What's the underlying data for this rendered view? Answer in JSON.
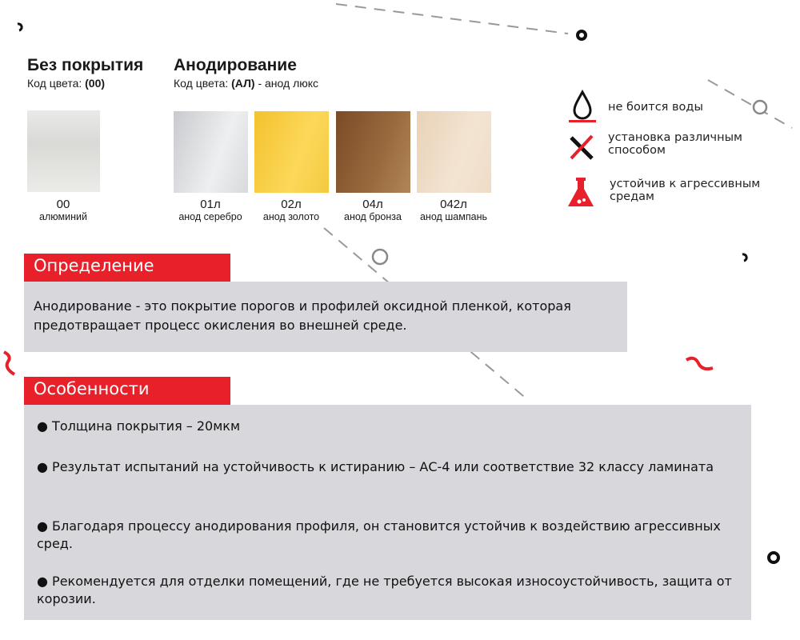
{
  "uncoated": {
    "title": "Без покрытия",
    "code_label": "Код цвета:",
    "code": "(00)",
    "swatch": {
      "code": "00",
      "name": "алюминий"
    }
  },
  "anodizing": {
    "title": "Анодирование",
    "code_label": "Код цвета:",
    "code": "(АЛ)",
    "code_suffix": "- анод люкс",
    "swatches": [
      {
        "code": "01л",
        "name": "анод серебро",
        "color": "#dcdde0"
      },
      {
        "code": "02л",
        "name": "анод золото",
        "color": "#f5c73f"
      },
      {
        "code": "04л",
        "name": "анод бронза",
        "color": "#94643a"
      },
      {
        "code": "042л",
        "name": "анод шампань",
        "color": "#f0dcc4"
      }
    ]
  },
  "features": [
    {
      "icon": "water-drop-icon",
      "label": "не боится воды"
    },
    {
      "icon": "tools-icon",
      "label": "установка различным способом"
    },
    {
      "icon": "flask-icon",
      "label": "устойчив к агрессивным средам"
    }
  ],
  "definition": {
    "title": "Определение",
    "text": "Анодирование - это покрытие порогов и профилей оксидной пленкой, которая предотвращает процесс окисления во внешней среде."
  },
  "specifics": {
    "title": "Особенности",
    "items": [
      "● Толщина покрытия – 20мкм",
      "●  Результат испытаний на устойчивость к истиранию – АС-4 или соответствие 32 классу ламината",
      "●  Благодаря процессу анодирования профиля, он становится устойчив к воздействию агрессивных сред.",
      "● Рекомендуется для отделки помещений,  где не требуется высокая износоустойчивость, защита от корозии."
    ]
  },
  "colors": {
    "accent": "#e8202a",
    "panel": "#d7d7dc"
  }
}
